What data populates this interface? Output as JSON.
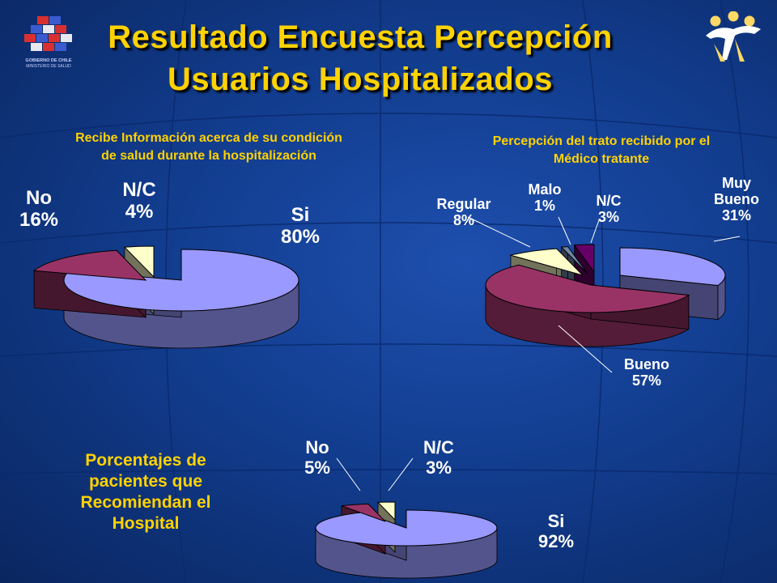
{
  "header": {
    "title_line1": "Resultado Encuesta Percepción",
    "title_line2": "Usuarios Hospitalizados",
    "logo_left_text": "GOBIERNO DE CHILE",
    "logo_left_subtext": "MINISTERIO DE SALUD"
  },
  "side_caption": [
    "Porcentajes de",
    "pacientes que",
    "Recomiendan el",
    "Hospital"
  ],
  "colors": {
    "background": "#123d8f",
    "title": "#ffd200",
    "lavender": "#9999ff",
    "maroon": "#993366",
    "cream": "#ffffcc",
    "olive_gray": "#9d9d78",
    "slate": "#6f86a8",
    "purple": "#660066"
  },
  "chart_data": [
    {
      "type": "pie",
      "title_line1": "Recibe Información acerca de su condición",
      "title_line2": "de salud durante la hospitalización",
      "slices": [
        {
          "label": "Si",
          "value": 80,
          "text": "80%",
          "color": "#9999ff"
        },
        {
          "label": "No",
          "value": 16,
          "text": "16%",
          "color": "#993366"
        },
        {
          "label": "N/C",
          "value": 4,
          "text": "4%",
          "color": "#ffffcc"
        }
      ]
    },
    {
      "type": "pie",
      "title_line1": "Percepción del trato recibido por el",
      "title_line2": "Médico tratante",
      "slices": [
        {
          "label_line1": "Muy",
          "label_line2": "Bueno",
          "value": 31,
          "text": "31%",
          "color": "#9999ff"
        },
        {
          "label": "Bueno",
          "value": 57,
          "text": "57%",
          "color": "#993366"
        },
        {
          "label": "Regular",
          "value": 8,
          "text": "8%",
          "color": "#ffffcc"
        },
        {
          "label": "Malo",
          "value": 1,
          "text": "1%",
          "color": "#6f86a8"
        },
        {
          "label": "N/C",
          "value": 3,
          "text": "3%",
          "color": "#660066"
        }
      ]
    },
    {
      "type": "pie",
      "title": "",
      "slices": [
        {
          "label": "Si",
          "value": 92,
          "text": "92%",
          "color": "#9999ff"
        },
        {
          "label": "No",
          "value": 5,
          "text": "5%",
          "color": "#993366"
        },
        {
          "label": "N/C",
          "value": 3,
          "text": "3%",
          "color": "#ffffcc"
        }
      ]
    }
  ]
}
